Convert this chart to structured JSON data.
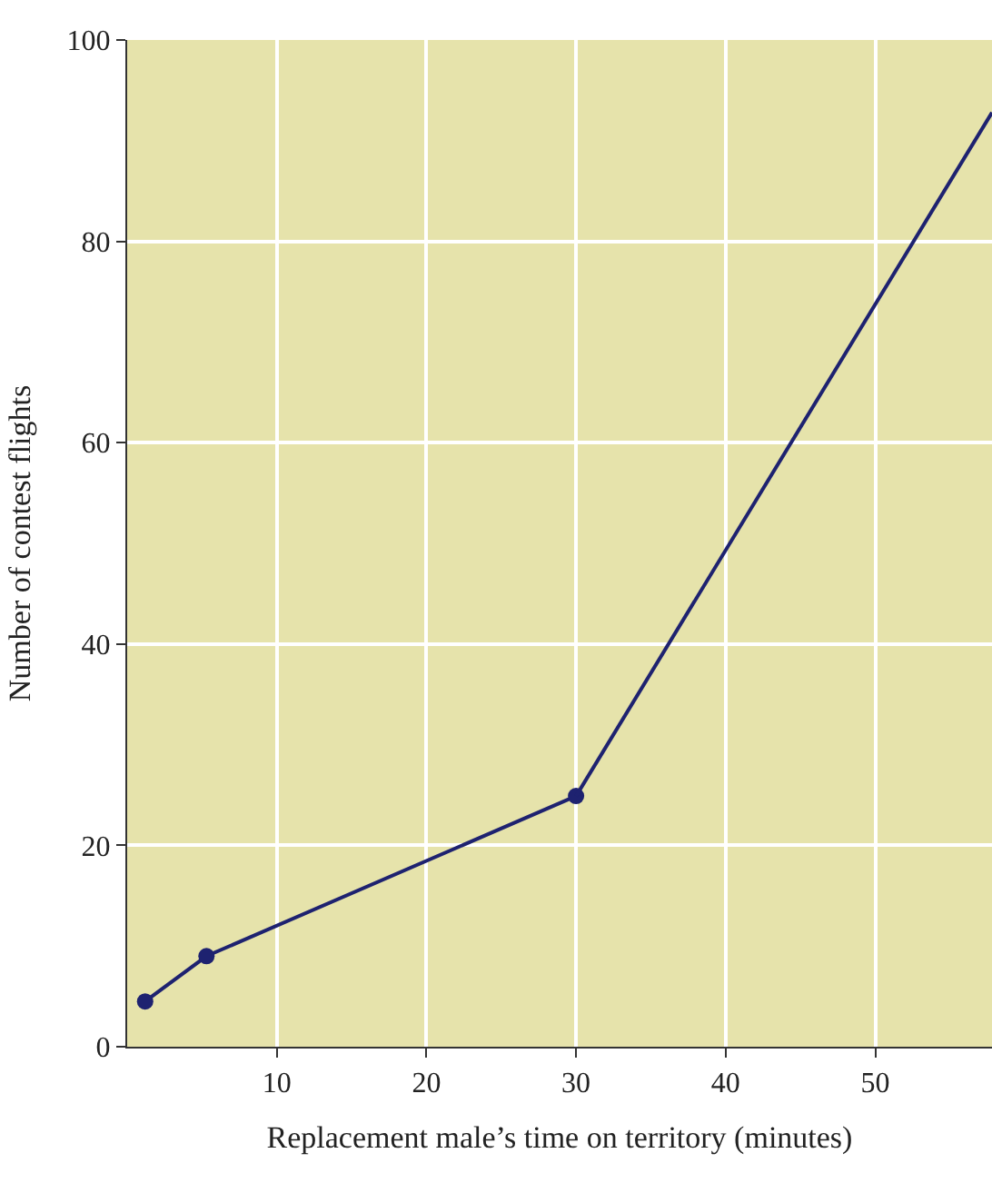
{
  "chart_data": {
    "type": "line",
    "xlabel": "Replacement male’s time on territory (minutes)",
    "ylabel": "Number of contest flights",
    "xlim": [
      0,
      57.8
    ],
    "xticks": [
      10,
      20,
      30,
      40,
      50
    ],
    "ylim": [
      0,
      100
    ],
    "yticks": [
      0,
      20,
      40,
      60,
      80,
      100
    ],
    "grid": true,
    "series": [
      {
        "x": [
          1.2,
          5.3,
          30
        ],
        "values": [
          4.5,
          9.0,
          24.9
        ],
        "color": "#1e2270",
        "marker": "circle"
      },
      {
        "x": [
          30,
          57.8
        ],
        "values": [
          24.9,
          92.8
        ],
        "color": "#1e2270",
        "marker": "none"
      }
    ]
  }
}
